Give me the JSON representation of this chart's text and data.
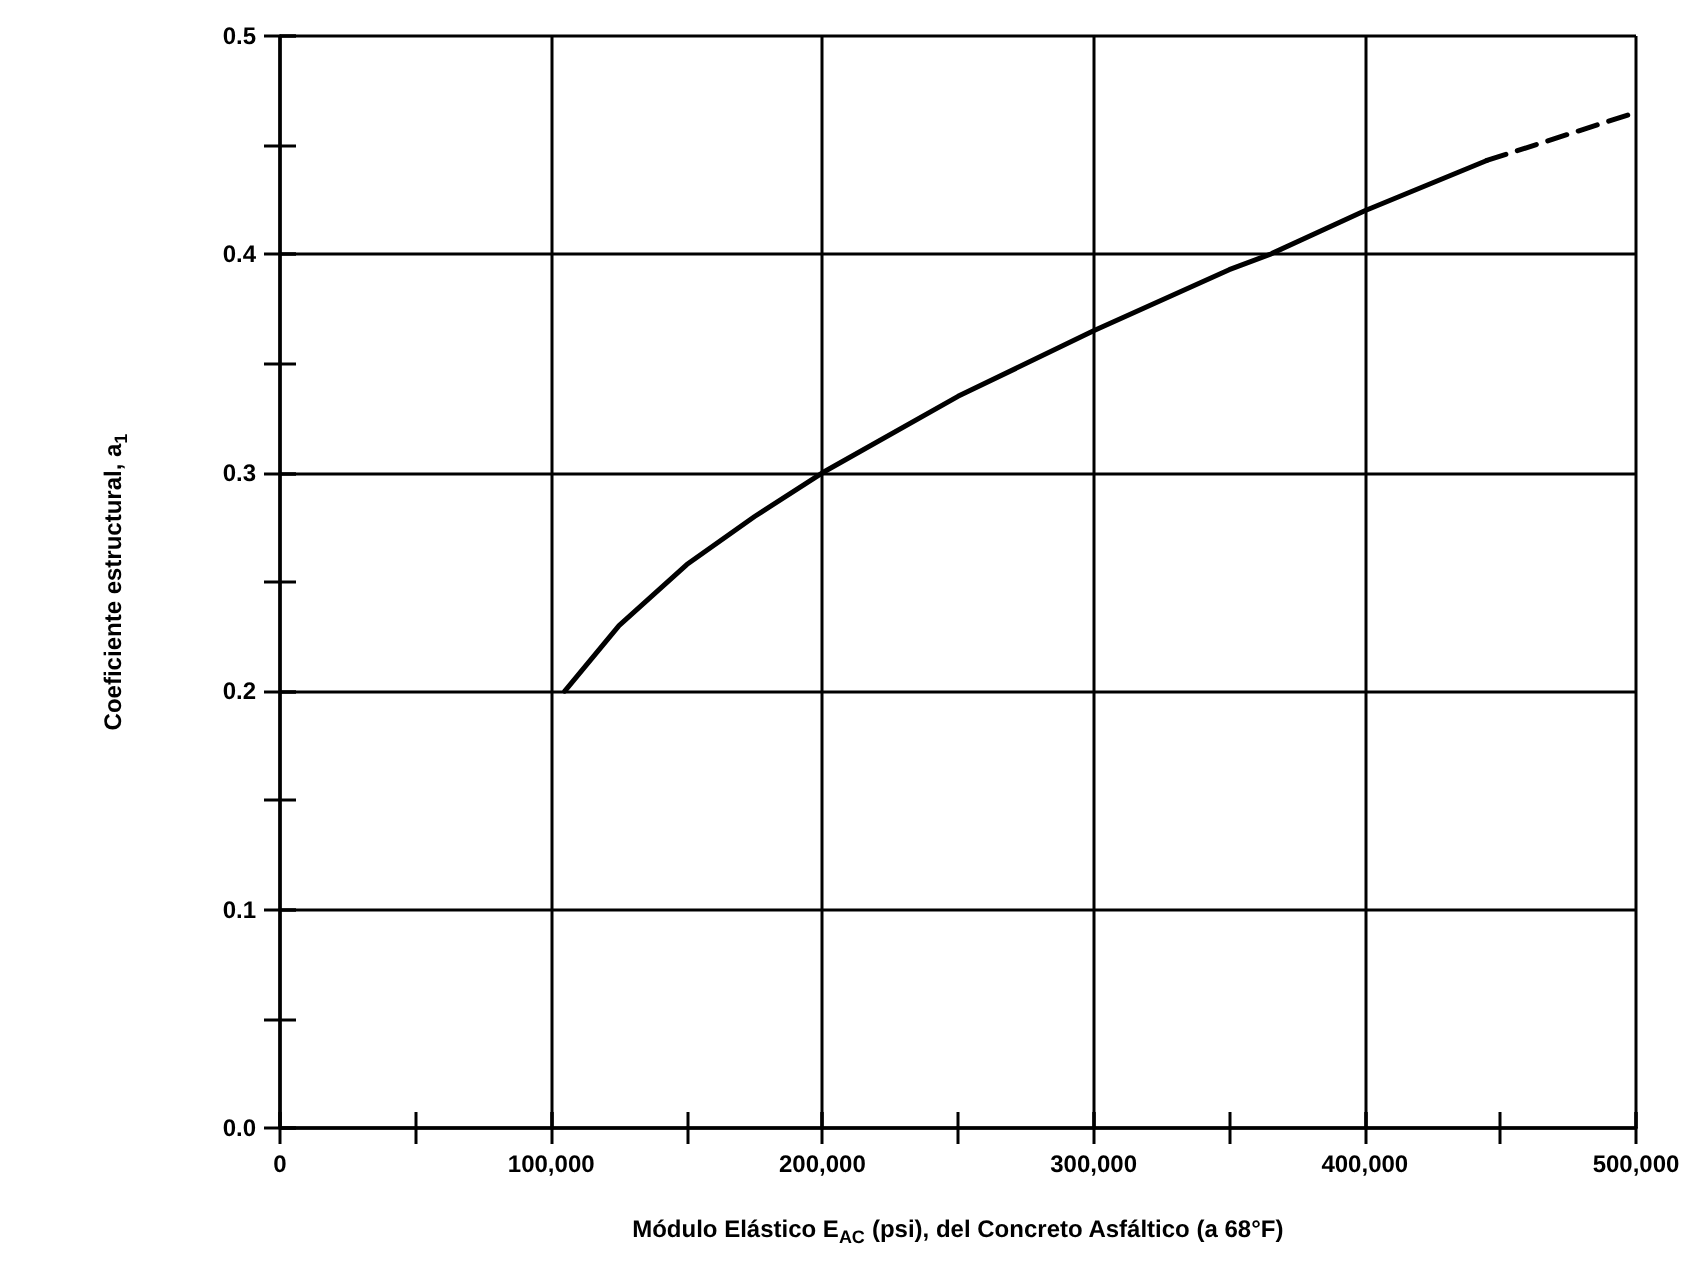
{
  "chart_data": {
    "type": "line",
    "xlabel": "Módulo Elástico E$_{AC}$ (psi), del Concreto Asfáltico (a 68°F)",
    "ylabel": "Coeficiente estructural, a$_{1}$",
    "xlim": [
      0,
      500000
    ],
    "xticks": [
      0,
      {
        "value": 50000,
        "label": null
      },
      {
        "value": 100000,
        "label": "100,000"
      },
      {
        "value": 150000,
        "label": null
      },
      {
        "value": 200000,
        "label": "200,000"
      },
      {
        "value": 250000,
        "label": null
      },
      {
        "value": 300000,
        "label": "300,000"
      },
      {
        "value": 350000,
        "label": null
      },
      {
        "value": 400000,
        "label": "400,000"
      },
      {
        "value": 450000,
        "label": null
      },
      {
        "value": 500000,
        "label": "500,000"
      }
    ],
    "ylim": [
      0,
      0.5
    ],
    "yticks": [
      {
        "value": 0,
        "label": "0.0"
      },
      {
        "value": 0.05,
        "label": null
      },
      0.1,
      {
        "value": 0.15,
        "label": null
      },
      0.2,
      {
        "value": 0.25,
        "label": null
      },
      0.3,
      {
        "value": 0.35,
        "label": null
      },
      0.4,
      {
        "value": 0.45,
        "label": null
      },
      0.5
    ],
    "grid": true,
    "marker": "none",
    "series": [
      {
        "color": "#000000",
        "line_style": "solid",
        "x": [
          105000,
          125000,
          150000,
          175000,
          200000,
          250000,
          300000,
          350000,
          365000,
          400000,
          445000
        ],
        "values": [
          0.2,
          0.23,
          0.258,
          0.28,
          0.3,
          0.335,
          0.365,
          0.393,
          0.4,
          0.42,
          0.443
        ]
      },
      {
        "color": "#000000",
        "line_style": "dashed",
        "x": [
          445000,
          475000,
          500000
        ],
        "values": [
          0.443,
          0.455,
          0.465
        ]
      }
    ]
  }
}
